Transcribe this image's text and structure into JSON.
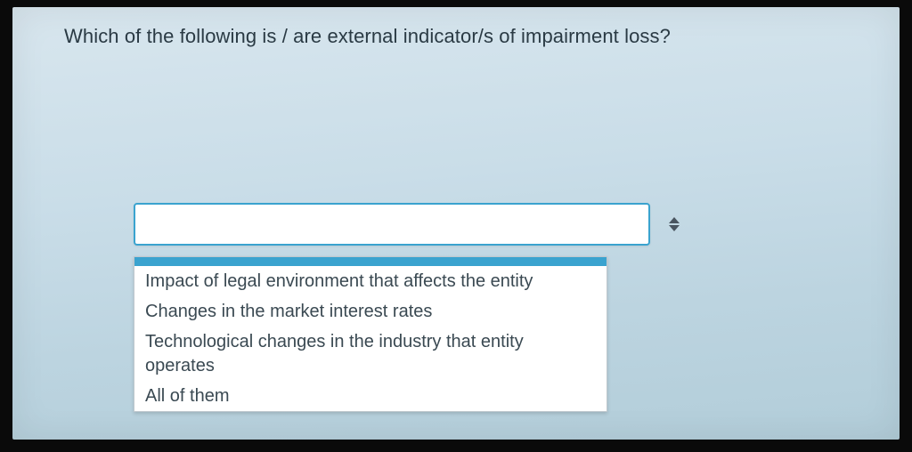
{
  "question": {
    "text": "Which of the following is / are external indicator/s of impairment loss?"
  },
  "select": {
    "value": "",
    "options": [
      "Impact of legal environment that affects the entity",
      "Changes in the market interest rates",
      "Technological changes in the industry that entity operates",
      "All of them"
    ]
  },
  "colors": {
    "highlight": "#3aa3cf",
    "text": "#3a4952",
    "question_text": "#2a3a44",
    "panel_bg_top": "#d8e6ee",
    "panel_bg_bottom": "#b2cdd9",
    "dropdown_bg": "#ffffff",
    "dropdown_border": "#bfc8ce"
  }
}
